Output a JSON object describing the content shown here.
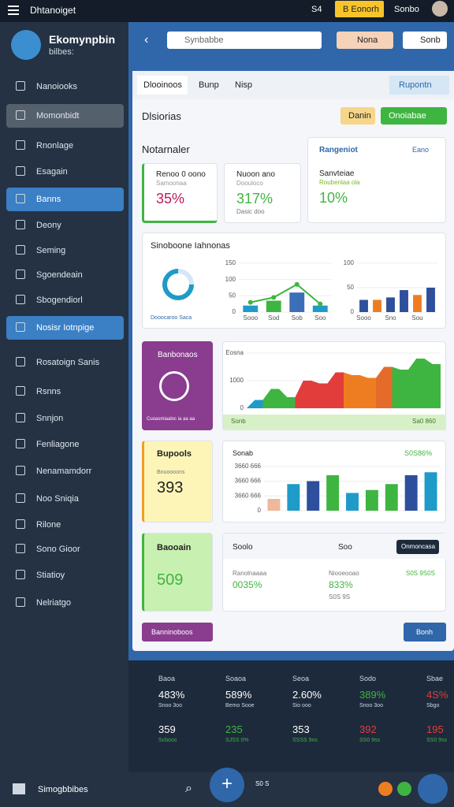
{
  "top_bar": {
    "title": "Dhtanoiget",
    "item1": "S4",
    "button": "B Eonorh",
    "item2": "Sonbo"
  },
  "sidebar": {
    "brand": "Ekomynpbin",
    "status": "bilbes:",
    "items": [
      "Nanoiooks",
      "Momonbidt",
      "Rnonlage",
      "Esagain",
      "Banns",
      "Deony",
      "Seming",
      "Sgoendeain",
      "Sbogendiorl",
      "Nosisr Iotnpige",
      "Rosatoign Sanis",
      "Rsnns",
      "Snnjon",
      "Fenliagone",
      "Nenamamdorr",
      "Noo Sniqia",
      "Rilone",
      "Sono Gioor",
      "Stiatioy",
      "Nelriatgo"
    ]
  },
  "header": {
    "search": "Synbabbe",
    "btn1": "Nona",
    "btn2": "Sonb"
  },
  "tabs": [
    "Dlooinoos",
    "Bunp",
    "Nisp"
  ],
  "report_btn": "Rupontn",
  "section_title": "Dlsiorias",
  "btn_yellow": "Danin",
  "btn_green": "Onoiabae",
  "notice": "Notarnaler",
  "kpis": [
    {
      "label": "Renoo 0 oono",
      "sub": "Samoonaa",
      "value": "35%"
    },
    {
      "label": "Nuoon ano",
      "sub": "Doouloco",
      "value": "317%",
      "foot": "Dasic doo"
    },
    {
      "label": "Sanvteiae",
      "sub": "Roubenlaa ola",
      "value": "10%"
    }
  ],
  "side_card": {
    "title": "Rangeniot",
    "link": "Eano"
  },
  "stats_title": "Sinoboone Iahnonas",
  "donut_foot": "Dooocaroo Saca",
  "chart_a": {
    "type": "bar",
    "categories": [
      "Sooo",
      "Sod",
      "Sob",
      "Soo"
    ],
    "values": [
      20,
      35,
      60,
      20
    ],
    "line_values": [
      30,
      45,
      85,
      25
    ],
    "colors": [
      "#1e9bc8",
      "#3fb541",
      "#3b6fb8",
      "#1e9bc8"
    ],
    "ylim": [
      0,
      150
    ],
    "yticks": [
      0,
      50,
      100,
      150
    ]
  },
  "chart_b": {
    "type": "bar",
    "categories": [
      "Sooo",
      null,
      "Sno",
      null,
      "Sou",
      null
    ],
    "values": [
      25,
      25,
      30,
      45,
      35,
      50
    ],
    "colors": [
      "#2d4f9c",
      "#ee7d22",
      "#2d4f9c",
      "#2d4f9c",
      "#ee7d22",
      "#2d4f9c"
    ],
    "ylim": [
      0,
      100
    ],
    "yticks": [
      0,
      50,
      100
    ]
  },
  "purple_card": {
    "title": "Banbonaos",
    "foot": "Cuoasmiaaloc ia aa aa"
  },
  "chart_area": {
    "type": "area",
    "values": [
      300,
      700,
      400,
      1000,
      900,
      1300,
      1200,
      1100,
      1500,
      1400,
      1800,
      1600
    ],
    "colors": [
      "#1e9bc8",
      "#3fb541",
      "#3fb541",
      "#e23d3a",
      "#e23d3a",
      "#e23d3a",
      "#ee7d22",
      "#ee7d22",
      "#e56b2b",
      "#3fb541",
      "#3fb541",
      "#3fb541"
    ],
    "ylim": [
      0,
      2000
    ],
    "yticks": [
      0,
      1000,
      {
        "value": 2000,
        "label": "Eosna"
      }
    ],
    "foot_left": "Sonb",
    "foot_right": "Sa0 860"
  },
  "yellow_card": {
    "title": "Bupools",
    "sub": "Bnuoooons",
    "value": "393"
  },
  "chart_c": {
    "type": "bar",
    "title": "Sonab",
    "corner": "S0S86%",
    "values": [
      20,
      45,
      50,
      60,
      30,
      35,
      45,
      60,
      65
    ],
    "colors": [
      "#f0b89a",
      "#1e9bc8",
      "#2d4f9c",
      "#3fb541",
      "#1e9bc8",
      "#3fb541",
      "#3fb541",
      "#2d4f9c",
      "#1e9bc8"
    ],
    "ylim": [
      0,
      80
    ],
    "yticks": [
      0,
      {
        "value": 25,
        "label": "3660 666"
      },
      {
        "value": 50,
        "label": "3660 666"
      },
      {
        "value": 75,
        "label": "3660 666"
      }
    ]
  },
  "green_card": {
    "title": "Baooain",
    "value": "509"
  },
  "detail_card": {
    "left": "Soolo",
    "mid": "Soo",
    "button": "Onmoncasa",
    "col1_label": "Ranolnaaaa",
    "col1_value": "0035%",
    "col2_label": "Niooeooao",
    "col2_value": "833%",
    "col2_sub": "S0S 9S",
    "col3": "S0S 9S0S"
  },
  "footer_left": "Banninoboos",
  "footer_right": "Bonh",
  "stats": [
    {
      "label": "Baoa",
      "v1": "483%",
      "s1": "Snoo 3oo",
      "v2": "359",
      "s2": "Scboos"
    },
    {
      "label": "Soaoa",
      "v1": "589%",
      "s1": "Bemo Sooe",
      "v2": "235",
      "s2": "SJSS 0%"
    },
    {
      "label": "Seoa",
      "v1": "2.60%",
      "s1": "Sio ooo",
      "v2": "353",
      "s2": "SSSS 9ns"
    },
    {
      "label": "Sodo",
      "v1": "389%",
      "s1": "Snoo 3oo",
      "v2": "392",
      "s2": "SS0 9ss"
    },
    {
      "label": "Sbae",
      "v1": "4S%",
      "s1": "Sbgo",
      "v2": "195",
      "s2": "SS0 9ss"
    }
  ],
  "bottom_nav": {
    "left": "Simogbbibes",
    "mid": "S0 S"
  }
}
